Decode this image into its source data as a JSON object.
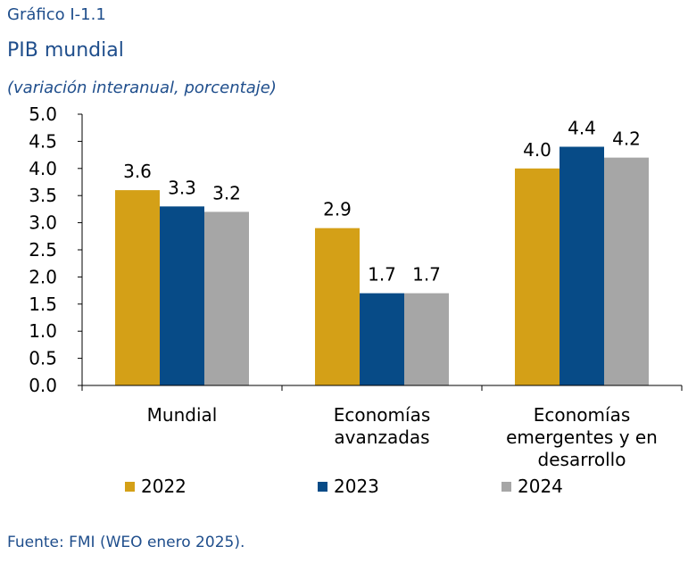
{
  "header": {
    "chart_number": "Gráfico I-1.1",
    "title": "PIB mundial",
    "subtitle": "(variación interanual, porcentaje)"
  },
  "footer": {
    "source": "Fuente: FMI (WEO enero 2025)."
  },
  "chart_data": {
    "type": "bar",
    "title": "PIB mundial",
    "subtitle": "(variación interanual, porcentaje)",
    "categories": [
      [
        "Mundial"
      ],
      [
        "Economías",
        "avanzadas"
      ],
      [
        "Economías",
        "emergentes y en",
        "desarrollo"
      ]
    ],
    "series": [
      {
        "name": "2022",
        "values": [
          3.6,
          2.9,
          4.0
        ],
        "color": "#d4a017"
      },
      {
        "name": "2023",
        "values": [
          3.3,
          1.7,
          4.4
        ],
        "color": "#074b87"
      },
      {
        "name": "2024",
        "values": [
          3.2,
          1.7,
          4.2
        ],
        "color": "#a6a6a6"
      }
    ],
    "y_ticks": [
      "0.0",
      "0.5",
      "1.0",
      "1.5",
      "2.0",
      "2.5",
      "3.0",
      "3.5",
      "4.0",
      "4.5",
      "5.0"
    ],
    "ylim": [
      0,
      5
    ],
    "xlabel": "",
    "ylabel": "",
    "grid": false,
    "legend_position": "bottom",
    "data_labels": true
  }
}
